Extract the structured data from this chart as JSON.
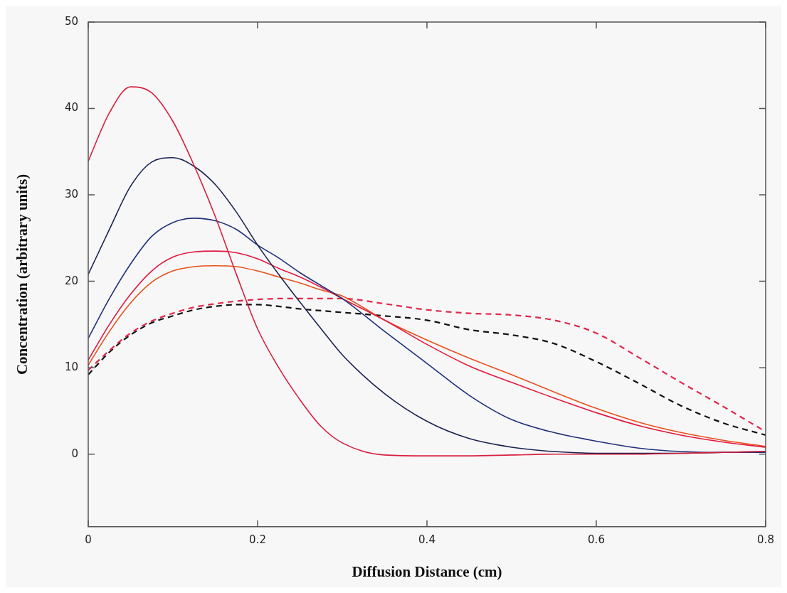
{
  "chart_data": {
    "type": "line",
    "xlabel": "Diffusion Distance (cm)",
    "ylabel": "Concentration (arbitrary units)",
    "x": [
      0,
      0.025,
      0.05,
      0.075,
      0.1,
      0.125,
      0.15,
      0.175,
      0.2,
      0.225,
      0.25,
      0.275,
      0.3,
      0.35,
      0.4,
      0.45,
      0.5,
      0.55,
      0.6,
      0.65,
      0.7,
      0.75,
      0.8
    ],
    "series": [
      {
        "color": "#d81f3c",
        "line_style": "solid",
        "values": [
          33.9,
          39.5,
          42.5,
          41.8,
          38.5,
          33.4,
          27.5,
          20.8,
          14.5,
          10,
          6.3,
          3.2,
          1.3,
          -0.1,
          -0.2,
          -0.2,
          -0.1,
          0,
          0,
          0,
          0.1,
          0.2,
          0.3
        ]
      },
      {
        "color": "#1c2350",
        "line_style": "solid",
        "values": [
          20.8,
          26,
          31,
          33.8,
          34.3,
          33.3,
          31.2,
          28,
          24.2,
          20.8,
          17.6,
          14.5,
          11.5,
          7,
          3.8,
          1.8,
          0.8,
          0.3,
          0.1,
          0.1,
          0.1,
          0.2,
          0.3
        ]
      },
      {
        "color": "#1f3078",
        "line_style": "solid",
        "values": [
          13.4,
          18,
          22,
          25.2,
          26.8,
          27.3,
          27,
          26,
          24.2,
          22.7,
          21,
          19.5,
          18,
          14.2,
          10.5,
          6.8,
          4,
          2.5,
          1.5,
          0.7,
          0.3,
          0.2,
          0.2
        ]
      },
      {
        "color": "#e3173e",
        "line_style": "solid",
        "values": [
          10.9,
          15,
          18.5,
          21.2,
          22.8,
          23.4,
          23.5,
          23.3,
          22.6,
          21.5,
          20.5,
          19.3,
          18,
          15.5,
          12.7,
          10.2,
          8.3,
          6.5,
          4.8,
          3.3,
          2.2,
          1.4,
          0.8
        ]
      },
      {
        "color": "#e8501a",
        "line_style": "solid",
        "values": [
          10.3,
          14.2,
          17.5,
          19.9,
          21.2,
          21.7,
          21.8,
          21.7,
          21.2,
          20.5,
          19.8,
          19,
          18.3,
          15.5,
          13.2,
          11.1,
          9.2,
          7.2,
          5.3,
          3.7,
          2.5,
          1.6,
          0.9
        ]
      },
      {
        "color": "#e0284a",
        "line_style": "dashed",
        "values": [
          9.7,
          12,
          14,
          15.4,
          16.3,
          17,
          17.4,
          17.7,
          17.9,
          18,
          18,
          18,
          18,
          17.4,
          16.7,
          16.3,
          16.1,
          15.5,
          14,
          11.2,
          8.3,
          5.5,
          2.6
        ]
      },
      {
        "color": "#111111",
        "line_style": "dashed",
        "values": [
          9.2,
          11.8,
          13.8,
          15.2,
          16,
          16.7,
          17.1,
          17.3,
          17.3,
          17.1,
          16.8,
          16.6,
          16.4,
          16,
          15.5,
          14.4,
          13.8,
          12.8,
          10.7,
          8.2,
          5.6,
          3.6,
          2.2
        ]
      }
    ],
    "xlim": [
      0,
      0.8
    ],
    "xticks": [
      0,
      0.2,
      0.4,
      0.6,
      0.8
    ],
    "ylim": [
      -8.4,
      50
    ],
    "yticks": [
      0,
      10,
      20,
      30,
      40,
      50
    ],
    "grid": false,
    "legend": false,
    "marker": "none"
  }
}
